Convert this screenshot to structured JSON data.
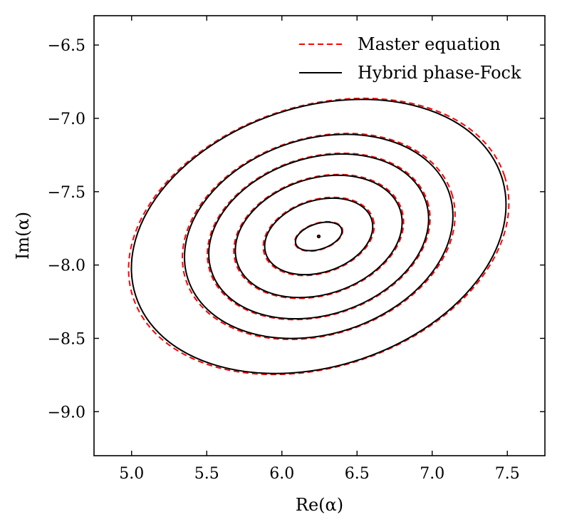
{
  "chart_data": {
    "type": "line",
    "title": "",
    "xlabel": "Re(α)",
    "ylabel": "Im(α)",
    "xlim": [
      4.75,
      7.75
    ],
    "ylim": [
      -9.3,
      -6.3
    ],
    "xticks": [
      5.0,
      5.5,
      6.0,
      6.5,
      7.0,
      7.5
    ],
    "yticks": [
      -6.5,
      -7.0,
      -7.5,
      -8.0,
      -8.5,
      -9.0
    ],
    "xtick_labels": [
      "5.0",
      "5.5",
      "6.0",
      "6.5",
      "7.0",
      "7.5"
    ],
    "ytick_labels": [
      "−6.5",
      "−7.0",
      "−7.5",
      "−8.0",
      "−8.5",
      "−9.0"
    ],
    "grid": false,
    "legend_position": "top-right",
    "series": [
      {
        "name": "Master equation",
        "style": "dashed",
        "color": "#ff0000",
        "contours": [
          {
            "center": [
              6.245,
              -7.805
            ],
            "rx": 0.0,
            "ry": 0.0
          },
          {
            "center": [
              6.245,
              -7.805
            ],
            "rx": 0.165,
            "ry": 0.09,
            "tilt_deg": -18
          },
          {
            "center": [
              6.245,
              -7.805
            ],
            "rx": 0.38,
            "ry": 0.25,
            "tilt_deg": -18
          },
          {
            "center": [
              6.245,
              -7.805
            ],
            "rx": 0.58,
            "ry": 0.4,
            "tilt_deg": -18
          },
          {
            "center": [
              6.245,
              -7.805
            ],
            "rx": 0.76,
            "ry": 0.54,
            "tilt_deg": -18
          },
          {
            "center": [
              6.245,
              -7.805
            ],
            "rx": 0.93,
            "ry": 0.67,
            "tilt_deg": -18
          },
          {
            "center": [
              6.245,
              -7.805
            ],
            "rx": 1.3,
            "ry": 0.89,
            "tilt_deg": -18
          }
        ]
      },
      {
        "name": "Hybrid phase-Fock",
        "style": "solid",
        "color": "#000000",
        "contours": [
          {
            "center": [
              6.245,
              -7.805
            ],
            "rx": 0.008,
            "ry": 0.008
          },
          {
            "center": [
              6.245,
              -7.805
            ],
            "rx": 0.16,
            "ry": 0.087,
            "tilt_deg": -18
          },
          {
            "center": [
              6.245,
              -7.805
            ],
            "rx": 0.37,
            "ry": 0.245,
            "tilt_deg": -18
          },
          {
            "center": [
              6.245,
              -7.805
            ],
            "rx": 0.57,
            "ry": 0.395,
            "tilt_deg": -18
          },
          {
            "center": [
              6.245,
              -7.805
            ],
            "rx": 0.75,
            "ry": 0.535,
            "tilt_deg": -18
          },
          {
            "center": [
              6.245,
              -7.805
            ],
            "rx": 0.915,
            "ry": 0.665,
            "tilt_deg": -18
          },
          {
            "center": [
              6.245,
              -7.805
            ],
            "rx": 1.28,
            "ry": 0.885,
            "tilt_deg": -18
          }
        ]
      }
    ]
  },
  "legend": {
    "master_label": "Master equation",
    "hybrid_label": "Hybrid phase-Fock"
  }
}
